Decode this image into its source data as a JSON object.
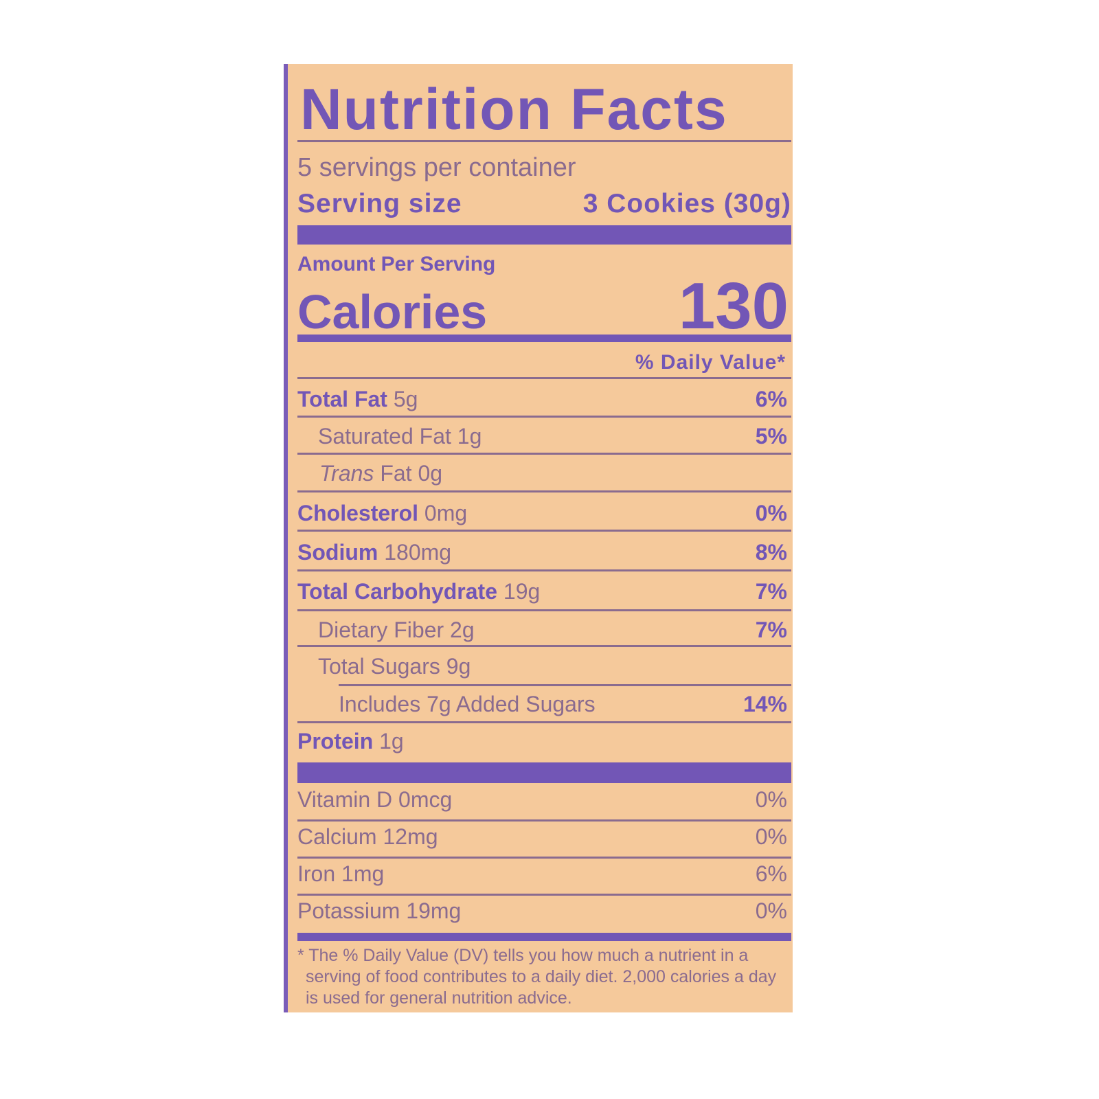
{
  "title": "Nutrition Facts",
  "servings_per_container": "5 servings per container",
  "serving_size_label": "Serving size",
  "serving_size_value": "3 Cookies (30g)",
  "amount_per_serving": "Amount Per Serving",
  "calories_label": "Calories",
  "calories_value": "130",
  "dv_header": "% Daily Value*",
  "nutrients": [
    {
      "name": "Total Fat",
      "amount": "5g",
      "dv": "6%"
    },
    {
      "name": "Saturated Fat",
      "amount": "1g",
      "dv": "5%"
    },
    {
      "name_italic": "Trans",
      "name": "Fat",
      "amount": "0g",
      "dv": ""
    },
    {
      "name": "Cholesterol",
      "amount": "0mg",
      "dv": "0%"
    },
    {
      "name": "Sodium",
      "amount": "180mg",
      "dv": "8%"
    },
    {
      "name": "Total Carbohydrate",
      "amount": "19g",
      "dv": "7%"
    },
    {
      "name": "Dietary Fiber",
      "amount": "2g",
      "dv": "7%"
    },
    {
      "name": "Total Sugars",
      "amount": "9g",
      "dv": ""
    },
    {
      "name": "Includes 7g Added Sugars",
      "amount": "",
      "dv": "14%"
    },
    {
      "name": "Protein",
      "amount": "1g",
      "dv": ""
    }
  ],
  "vitamins": [
    {
      "name": "Vitamin D",
      "amount": "0mcg",
      "dv": "0%"
    },
    {
      "name": "Calcium",
      "amount": "12mg",
      "dv": "0%"
    },
    {
      "name": "Iron",
      "amount": "1mg",
      "dv": "6%"
    },
    {
      "name": "Potassium",
      "amount": "19mg",
      "dv": "0%"
    }
  ],
  "footnote": [
    "* The % Daily Value (DV) tells you how much a nutrient in a",
    "serving of food contributes to a daily diet. 2,000 calories a day",
    "is used for general nutrition advice."
  ],
  "colors": {
    "background": "#f5c99b",
    "accent": "#7256b6",
    "text": "#8a6b8f"
  }
}
